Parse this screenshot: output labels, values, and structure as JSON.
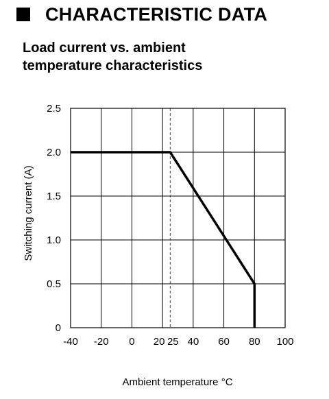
{
  "header": {
    "section_title": "CHARACTERISTIC DATA",
    "subtitle_line1": "Load current vs. ambient",
    "subtitle_line2": "temperature characteristics"
  },
  "chart_data": {
    "type": "line",
    "xlabel": "Ambient temperature °C",
    "ylabel": "Switching current (A)",
    "xlim": [
      -40,
      100
    ],
    "ylim": [
      0,
      2.5
    ],
    "x_ticks": [
      -40,
      -20,
      0,
      20,
      25,
      40,
      60,
      80,
      100
    ],
    "x_tick_labels": [
      "-40",
      "-20",
      "0",
      "20",
      "25",
      "40",
      "60",
      "80",
      "100"
    ],
    "y_ticks": [
      0,
      0.5,
      1.0,
      1.5,
      2.0,
      2.5
    ],
    "y_tick_labels": [
      "0",
      "0.5",
      "1.0",
      "1.5",
      "2.0",
      "2.5"
    ],
    "grid": true,
    "series": [
      {
        "x": [
          -40,
          25,
          80,
          80
        ],
        "y": [
          2.0,
          2.0,
          0.5,
          0
        ]
      }
    ],
    "reference_lines": [
      {
        "x": 25,
        "style": "dashed"
      }
    ]
  }
}
